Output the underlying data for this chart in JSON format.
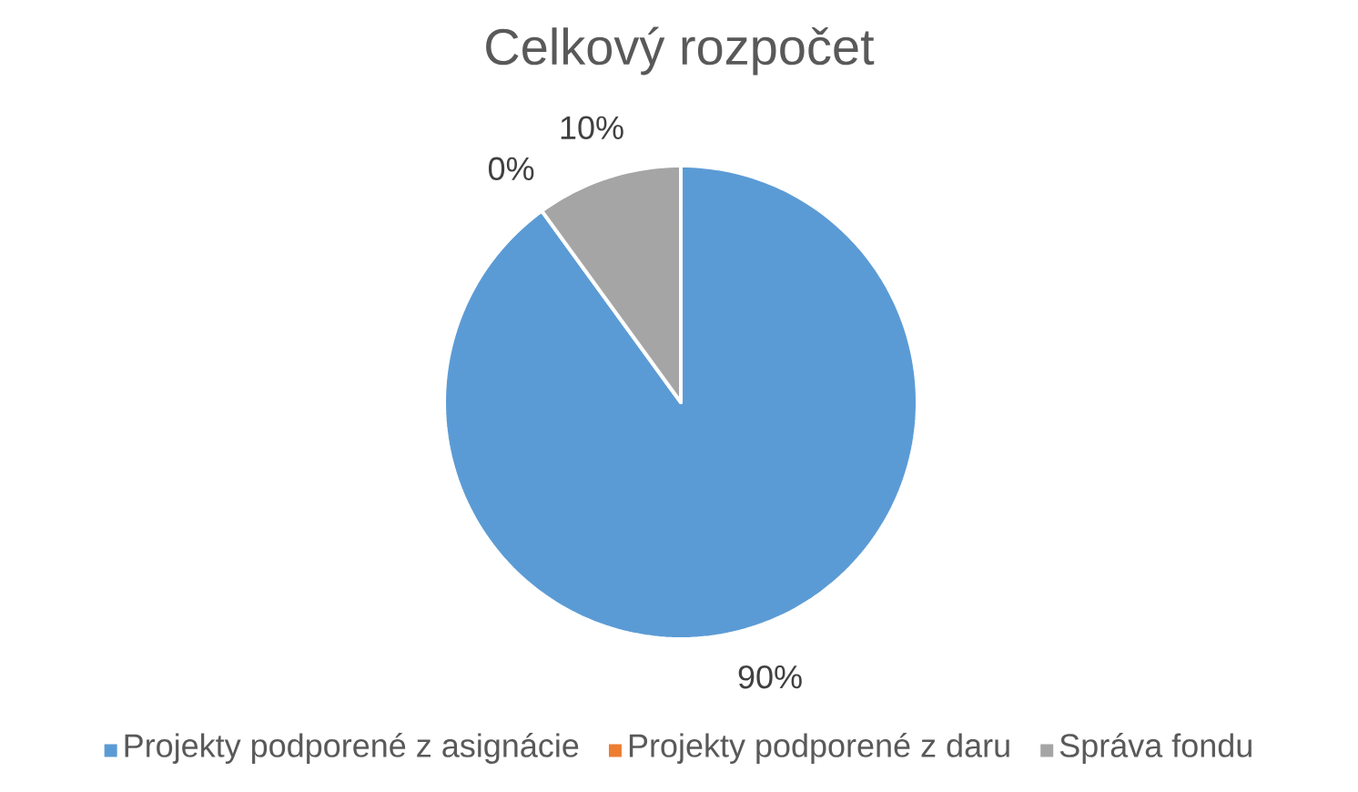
{
  "chart_data": {
    "type": "pie",
    "title": "Celkový rozpočet",
    "categories": [
      "Projekty podporené z asignácie",
      "Projekty podporené z daru",
      "Správa fondu"
    ],
    "values": [
      90,
      0,
      10
    ],
    "colors": [
      "#5b9bd5",
      "#ed7d31",
      "#a5a5a5"
    ],
    "value_labels": [
      "90%",
      "0%",
      "10%"
    ],
    "legend": "bottom"
  }
}
